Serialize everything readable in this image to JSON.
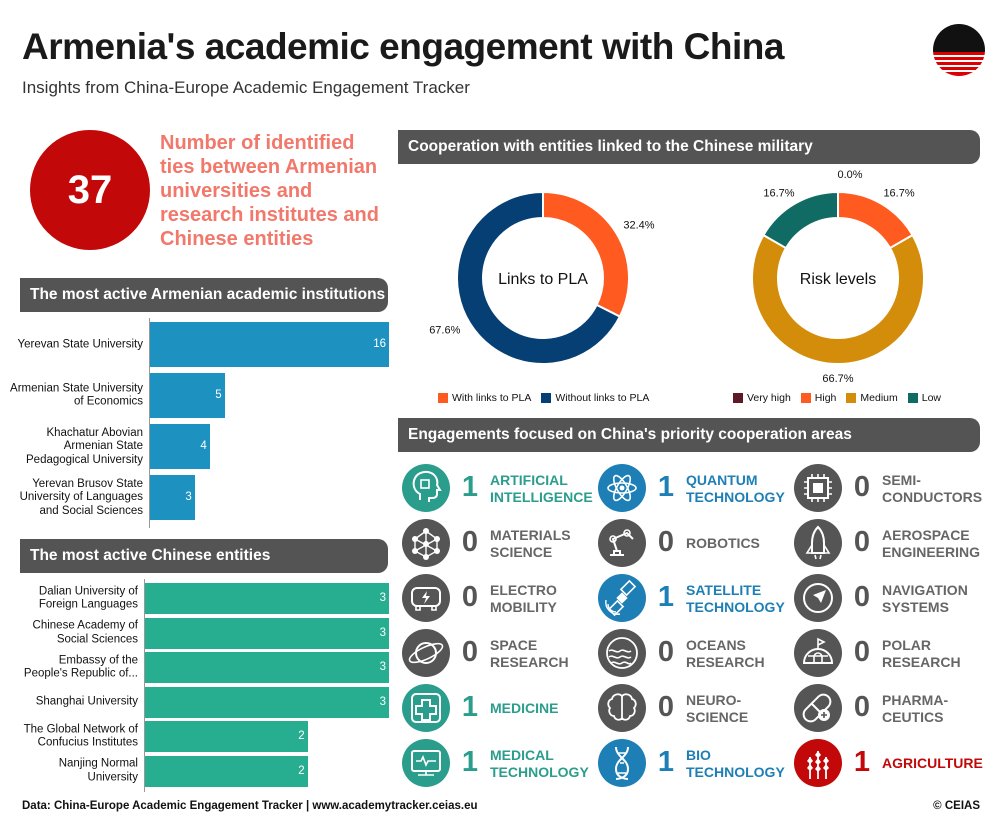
{
  "title": "Armenia's academic engagement with China",
  "subtitle": "Insights from China-Europe Academic Engagement Tracker",
  "kpi": {
    "value": "37",
    "text": "Number of identified ties between Armenian universities and research institutes and Chinese entities"
  },
  "section_titles": {
    "armenian": "The most active Armenian academic institutions",
    "chinese": "The most active Chinese entities",
    "military": "Cooperation with entities linked to the Chinese military",
    "areas": "Engagements focused on China's priority cooperation areas"
  },
  "colors": {
    "blue_bar": "#1d91bf",
    "green_bar": "#27ad8f",
    "red": "#c20808",
    "header_bg": "#545454",
    "teal": "#2b9d8c",
    "area_blue": "#1d7fb5",
    "gray": "#666666",
    "coral": "#f1786b"
  },
  "chart_data": [
    {
      "type": "bar",
      "orientation": "horizontal",
      "categories": [
        "Yerevan State University",
        "Armenian State University of Economics",
        "Khachatur Abovian Armenian State Pedagogical University",
        "Yerevan Brusov State University of Languages and Social Sciences"
      ],
      "values": [
        16,
        5,
        4,
        3
      ],
      "xlim": [
        0,
        16
      ]
    },
    {
      "type": "bar",
      "orientation": "horizontal",
      "categories": [
        "Dalian University of Foreign Languages",
        "Chinese Academy of Social Sciences",
        "Embassy of the People's Republic of...",
        "Shanghai University",
        "The Global Network of Confucius Institutes",
        "Nanjing Normal University"
      ],
      "values": [
        3,
        3,
        3,
        3,
        2,
        2
      ],
      "xlim": [
        0,
        3
      ]
    },
    {
      "type": "pie",
      "title": "Links to PLA",
      "labels": [
        "With links to PLA",
        "Without links to PLA"
      ],
      "values": [
        32.4,
        67.6
      ],
      "value_labels": [
        "32.4%",
        "67.6%"
      ],
      "colors": [
        "#ff5a1f",
        "#063f73"
      ]
    },
    {
      "type": "pie",
      "title": "Risk levels",
      "labels": [
        "Very high",
        "High",
        "Medium",
        "Low"
      ],
      "values": [
        0.0,
        16.7,
        66.7,
        16.7
      ],
      "value_labels": [
        "0.0%",
        "16.7%",
        "66.7%",
        "16.7%"
      ],
      "colors": [
        "#5c1a26",
        "#ff5a1f",
        "#d38d0a",
        "#0f6b63"
      ]
    }
  ],
  "areas": [
    {
      "icon": "ai-head-icon",
      "count": "1",
      "label": "ARTIFICIAL\nINTELLIGENCE",
      "color": "#2b9d8c"
    },
    {
      "icon": "atom-icon",
      "count": "1",
      "label": "QUANTUM\nTECHNOLOGY",
      "color": "#1d7fb5"
    },
    {
      "icon": "chip-icon",
      "count": "0",
      "label": "SEMI-\nCONDUCTORS",
      "color": "#666666"
    },
    {
      "icon": "molecule-icon",
      "count": "0",
      "label": "MATERIALS\nSCIENCE",
      "color": "#666666"
    },
    {
      "icon": "robot-arm-icon",
      "count": "0",
      "label": "ROBOTICS",
      "color": "#666666"
    },
    {
      "icon": "shuttle-icon",
      "count": "0",
      "label": "AEROSPACE\nENGINEERING",
      "color": "#666666"
    },
    {
      "icon": "electric-car-icon",
      "count": "0",
      "label": "ELECTRO\nMOBILITY",
      "color": "#666666"
    },
    {
      "icon": "satellite-icon",
      "count": "1",
      "label": "SATELLITE\nTECHNOLOGY",
      "color": "#1d7fb5"
    },
    {
      "icon": "compass-icon",
      "count": "0",
      "label": "NAVIGATION\nSYSTEMS",
      "color": "#666666"
    },
    {
      "icon": "planet-icon",
      "count": "0",
      "label": "SPACE\nRESEARCH",
      "color": "#666666"
    },
    {
      "icon": "waves-icon",
      "count": "0",
      "label": "OCEANS\nRESEARCH",
      "color": "#666666"
    },
    {
      "icon": "igloo-icon",
      "count": "0",
      "label": "POLAR\nRESEARCH",
      "color": "#666666"
    },
    {
      "icon": "medical-cross-icon",
      "count": "1",
      "label": "MEDICINE",
      "color": "#2b9d8c"
    },
    {
      "icon": "brain-icon",
      "count": "0",
      "label": "NEURO-\nSCIENCE",
      "color": "#666666"
    },
    {
      "icon": "pill-icon",
      "count": "0",
      "label": "PHARMA-\nCEUTICS",
      "color": "#666666"
    },
    {
      "icon": "heart-monitor-icon",
      "count": "1",
      "label": "MEDICAL\nTECHNOLOGY",
      "color": "#2b9d8c"
    },
    {
      "icon": "dna-icon",
      "count": "1",
      "label": "BIO\nTECHNOLOGY",
      "color": "#1d7fb5"
    },
    {
      "icon": "wheat-icon",
      "count": "1",
      "label": "AGRICULTURE",
      "color": "#c20808"
    }
  ],
  "footer": {
    "source": "Data: China-Europe Academic Engagement Tracker | ",
    "link": "www.academytracker.ceias.eu",
    "copyright": "© CEIAS"
  }
}
